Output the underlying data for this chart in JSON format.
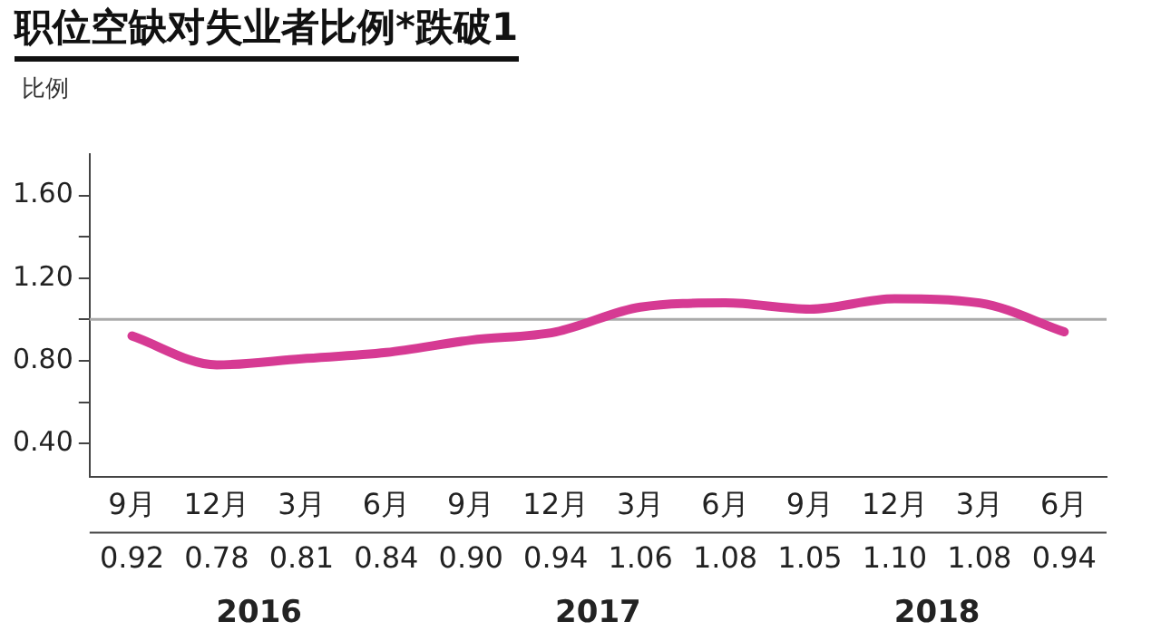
{
  "chart_data": {
    "type": "line",
    "title": "职位空缺对失业者比例*跌破1",
    "ylabel": "比例",
    "categories": [
      "9月",
      "12月",
      "3月",
      "6月",
      "9月",
      "12月",
      "3月",
      "6月",
      "9月",
      "12月",
      "3月",
      "6月"
    ],
    "series": [
      {
        "color": "#d63a93",
        "values": [
          0.92,
          0.78,
          0.81,
          0.84,
          0.9,
          0.94,
          1.06,
          1.08,
          1.05,
          1.1,
          1.08,
          0.94
        ],
        "value_labels": [
          "0.92",
          "0.78",
          "0.81",
          "0.84",
          "0.90",
          "0.94",
          "1.06",
          "1.08",
          "1.05",
          "1.10",
          "1.08",
          "0.94"
        ]
      }
    ],
    "ylim": [
      0.24,
      1.8
    ],
    "yticks": [
      {
        "value": 0.4,
        "label": "0.40"
      },
      {
        "value": 0.6,
        "label": null
      },
      {
        "value": 0.8,
        "label": "0.80"
      },
      {
        "value": 1.0,
        "label": null
      },
      {
        "value": 1.2,
        "label": "1.20"
      },
      {
        "value": 1.4,
        "label": null
      },
      {
        "value": 1.6,
        "label": "1.60"
      }
    ],
    "ref_lines": [
      {
        "axis": "y",
        "value": 1.0,
        "color": "#aaaaaa"
      }
    ],
    "grid": false,
    "legend": false,
    "marker": "none",
    "line_style": "solid",
    "annotations": [
      "2016",
      "2017",
      "2018"
    ]
  }
}
